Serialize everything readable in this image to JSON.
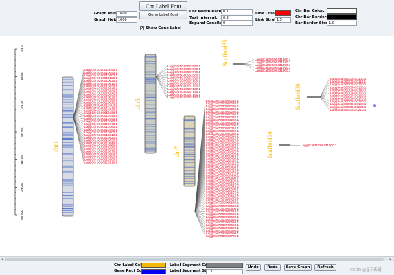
{
  "toolbar": {
    "graph_width_label": "Graph Width:",
    "graph_width_value": "1600",
    "graph_height_label": "Graph Height:",
    "graph_height_value": "1000",
    "chr_label_font_button": "Chr Label Font",
    "gene_label_font_button": "Gene Label Font",
    "show_gene_label": "Show Gene Label",
    "show_gene_label_checked": true,
    "chr_width_ratio_label": "Chr Width Ratio:",
    "chr_width_ratio_value": "0.1",
    "text_interval_label": "Text Interval:",
    "text_interval_value": "0.2",
    "expand_gene_range_label": "Expand GeneRange:",
    "expand_gene_range_value": "0",
    "link_color_label": "Link Color:",
    "link_color": "#ff0000",
    "link_stroke_label": "Link Stroke:",
    "link_stroke_value": "1.5",
    "chr_bar_color_label": "Chr Bar Color:",
    "chr_bar_color": "#ffffff",
    "chr_bar_border_label": "Chr Bar Border:",
    "chr_bar_border_color": "#000000",
    "bar_border_stroke_label": "Bar Border Stroke:",
    "bar_border_stroke_value": "1.0"
  },
  "bottom": {
    "chr_label_color_label": "Chr Label Color:",
    "chr_label_color": "#f5b800",
    "gene_rect_color_label": "Gene Rect Color:",
    "gene_rect_color": "#0000ee",
    "label_segment_color_label": "Label Segment Color:",
    "label_segment_color": "#808080",
    "label_segment_stroke_label": "Label Segment Stroke:",
    "label_segment_stroke_value": "1.0",
    "undo": "Undo",
    "redo": "Redo",
    "save_graph": "Save Graph",
    "refresh": "Refresh"
  },
  "watermark": "CSDN @星石传说",
  "colors": {
    "gene_label": "#e8001c",
    "chr_label": "#f5b800",
    "gene_rect": "#3f63c9"
  },
  "axis_ticks": [
    "0 Mb",
    "50 Mb",
    "100 Mb",
    "150 Mb",
    "200 Mb",
    "250 Mb",
    "300 Mb"
  ],
  "chromosomes": [
    {
      "name": "chr1",
      "genes": [
        "LaggChr1G00010090.1",
        "LaggChr1G00010090.1",
        "LaggChr1G00010100.1",
        "LaggChr1G00010120.1",
        "LaggChr1G00010620.1",
        "LaggChr1G00010610.1",
        "LaggChr1G00010630.1",
        "LaggChr1G00010640.1",
        "LaggChr1G00010650.1",
        "LaggChr1G00010660.1",
        "LaggChr1G00010670.1",
        "LaggChr1G00010680.1",
        "LaggChr1G00010690.1",
        "LaggChr1G00010700.1",
        "LaggChr1G00010710.1",
        "LaggChr1G00010720.1",
        "LaggChr1G00010730.1",
        "LaggChr1G00010740.1",
        "LaggChr1G00010750.1",
        "LaggChr1G00010760.1",
        "LaggChr1G00010770.1",
        "LaggChr1G00010780.1",
        "LaggChr1G00010790.1",
        "LaggChr1G00010800.1",
        "LaggChr1G00010810.1",
        "LaggChr1G00010820.1",
        "LaggChr1G00010830.1",
        "LaggChr1G00010840.1",
        "LaggChr1G00010850.1",
        "LaggChr1G00010860.1",
        "LaggChr1G00010870.1",
        "LaggChr1G00010880.1",
        "LaggChr1G00010890.1",
        "LaggChr1G00010900.1",
        "LaggChr1G00010910.1"
      ]
    },
    {
      "name": "chr5",
      "genes": [
        "LaggChr5G00067050.1",
        "LaggChr5G00067060.1",
        "LaggChr5G00067070.1",
        "LaggChr5G00067080.1",
        "LaggChr5G00067090.1",
        "LaggChr5G00067100.1",
        "LaggChr5G00067110.1",
        "LaggChr5G00067120.1",
        "LaggChr5G00067130.1",
        "LaggChr5G00067140.1",
        "LaggChr5G00067150.1",
        "LaggChr5G00067160.1"
      ]
    },
    {
      "name": "chr7",
      "genes": [
        "LaggChr7G00050210.1",
        "LaggChr7G00050220.1",
        "LaggChr7G00050230.1",
        "LaggChr7G00050240.1",
        "LaggChr7G00050250.1",
        "LaggChr7G00050260.1",
        "LaggChr7G00050270.1",
        "LaggChr7G00050280.1",
        "LaggChr7G00050290.1",
        "LaggChr7G00050300.1",
        "LaggChr7G00050310.1",
        "LaggChr7G00050320.1",
        "LaggChr7G00050330.1",
        "LaggChr7G00050340.1",
        "LaggChr7G00050350.1",
        "LaggChr7G00050360.1",
        "LaggChr7G00050370.1",
        "LaggChr7G00050380.1",
        "LaggChr7G00050390.1",
        "LaggChr7G00050400.1",
        "LaggChr7G00050410.1",
        "LaggChr7G00050420.1",
        "LaggChr7G00050430.1",
        "LaggChr7G00050440.1",
        "LaggChr7G00050450.1",
        "LaggChr7G00050460.1",
        "LaggChr7G00050470.1",
        "LaggChr7G00050480.1",
        "LaggChr7G00050490.1",
        "LaggChr7G00050500.1",
        "LaggChr7G00050510.1",
        "LaggChr7G00050520.1",
        "LaggChr7G00050530.1",
        "LaggChr7G00050540.1",
        "LaggChr7G00050550.1",
        "LaggChr7G00050560.1",
        "LaggChr7G00050570.1",
        "LaggChr7G00050580.1",
        "LaggChr7G00050590.1",
        "LaggChr7G00050600.1",
        "LaggChr7G00050610.1",
        "LaggChr7G00050620.1",
        "LaggChr7G00050630.1",
        "LaggChr7G00050640.1",
        "LaggChr7G00050650.1",
        "LaggChr7G00050660.1",
        "LaggChr7G00050670.1",
        "LaggChr7G00050680.1",
        "LaggChr7G00050690.1",
        "LaggChr7G00050700.1"
      ]
    },
    {
      "name": "Scaffold35",
      "genes": [
        "LaggScaf35G00431860.1",
        "LaggScaf35G00431870.1",
        "LaggScaf35G00431880.1",
        "LaggScaf35G00431890.1",
        "LaggScaf35G00431900.1"
      ]
    },
    {
      "name": "Scaffold36",
      "genes": [
        "LaggScaf36G00430100.1",
        "LaggScaf36G00430110.1",
        "LaggScaf36G00430120.1",
        "LaggScaf36G00430130.1",
        "LaggScaf36G00430140.1",
        "LaggScaf36G00430150.1",
        "LaggScaf36G00430160.1",
        "LaggScaf36G00430170.1",
        "LaggScaf36G00430180.1",
        "LaggScaf36G00430190.1",
        "LaggScaf36G00430200.1",
        "LaggScaf36G00430210.1"
      ]
    },
    {
      "name": "Scaffold34",
      "genes": [
        "LaggScaf34G00431900.1"
      ]
    }
  ]
}
